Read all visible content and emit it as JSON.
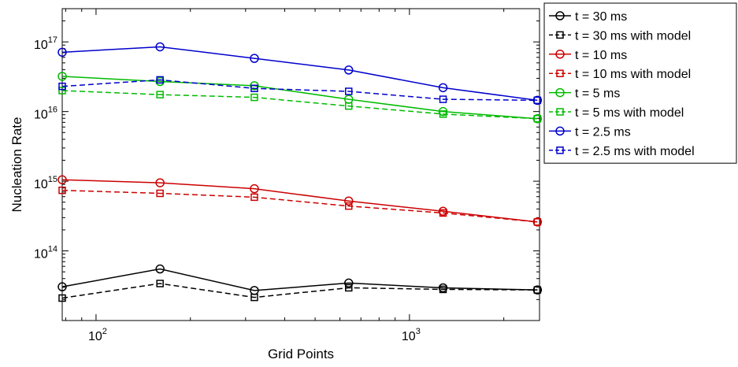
{
  "chart_data": {
    "type": "line",
    "xlabel": "Grid Points",
    "ylabel": "Nucleation Rate",
    "xscale": "log",
    "yscale": "log",
    "xlim": [
      78,
      2600
    ],
    "ylim": [
      10000000000000.0,
      3e+17
    ],
    "x": [
      78,
      160,
      320,
      640,
      1280,
      2560
    ],
    "x_ticks": [
      {
        "value": 100,
        "base": "10",
        "exp": "2"
      },
      {
        "value": 1000,
        "base": "10",
        "exp": "3"
      }
    ],
    "y_ticks": [
      {
        "value": 100000000000000.0,
        "base": "10",
        "exp": "14"
      },
      {
        "value": 1000000000000000.0,
        "base": "10",
        "exp": "15"
      },
      {
        "value": 1e+16,
        "base": "10",
        "exp": "16"
      },
      {
        "value": 1e+17,
        "base": "10",
        "exp": "17"
      }
    ],
    "grid": false,
    "legend_position": "outside-right-top",
    "series": [
      {
        "name": "t = 30 ms",
        "color": "#000000",
        "dash": "solid",
        "marker": "circle",
        "values": [
          30500000000000.0,
          55000000000000.0,
          27000000000000.0,
          34500000000000.0,
          29500000000000.0,
          27500000000000.0
        ]
      },
      {
        "name": "t = 30 ms with model",
        "color": "#000000",
        "dash": "dashed",
        "marker": "square",
        "values": [
          21000000000000.0,
          34000000000000.0,
          21500000000000.0,
          29500000000000.0,
          28000000000000.0,
          27500000000000.0
        ]
      },
      {
        "name": "t = 10 ms",
        "color": "#cc0000",
        "dash": "solid",
        "marker": "circle",
        "values": [
          1050000000000000.0,
          950000000000000.0,
          780000000000000.0,
          520000000000000.0,
          370000000000000.0,
          260000000000000.0
        ]
      },
      {
        "name": "t = 10 ms with model",
        "color": "#cc0000",
        "dash": "dashed",
        "marker": "square",
        "values": [
          740000000000000.0,
          670000000000000.0,
          590000000000000.0,
          440000000000000.0,
          350000000000000.0,
          260000000000000.0
        ]
      },
      {
        "name": "t = 5 ms",
        "color": "#00bb00",
        "dash": "solid",
        "marker": "circle",
        "values": [
          3.2e+16,
          2.7e+16,
          2.35e+16,
          1.5e+16,
          1e+16,
          7900000000000000.0
        ]
      },
      {
        "name": "t = 5 ms with model",
        "color": "#00bb00",
        "dash": "dashed",
        "marker": "square",
        "values": [
          2e+16,
          1.75e+16,
          1.6e+16,
          1.2e+16,
          9200000000000000.0,
          7900000000000000.0
        ]
      },
      {
        "name": "t = 2.5 ms",
        "color": "#0000cc",
        "dash": "solid",
        "marker": "circle",
        "values": [
          7.1e+16,
          8.5e+16,
          5.8e+16,
          3.95e+16,
          2.2e+16,
          1.45e+16
        ]
      },
      {
        "name": "t = 2.5 ms with model",
        "color": "#0000cc",
        "dash": "dashed",
        "marker": "square",
        "values": [
          2.3e+16,
          2.85e+16,
          2.15e+16,
          1.95e+16,
          1.5e+16,
          1.45e+16
        ]
      }
    ]
  }
}
